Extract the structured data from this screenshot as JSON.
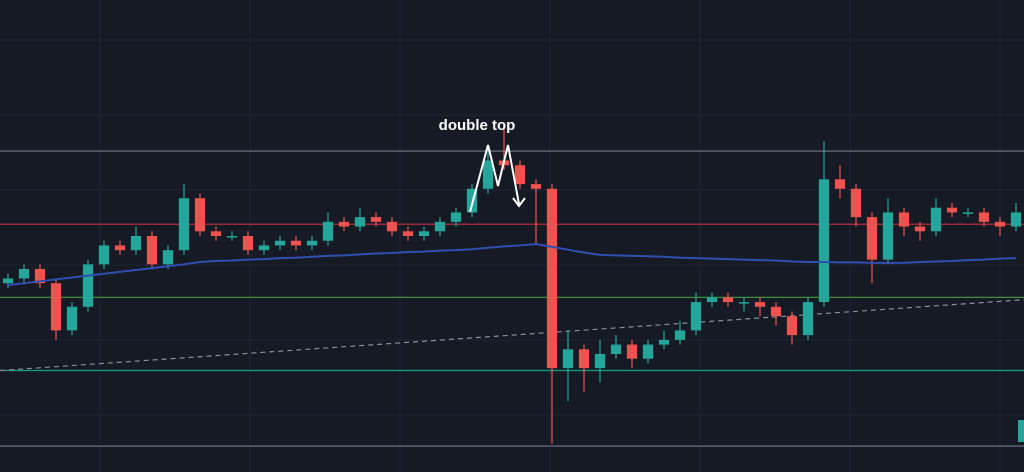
{
  "chart_data": {
    "type": "candlestick",
    "annotation": "double top",
    "ylim": [
      0,
      100
    ],
    "up_color": "#26a69a",
    "down_color": "#ef5350",
    "open": [
      40,
      41,
      43,
      40,
      30,
      35,
      44,
      48,
      47,
      50,
      44,
      47,
      58,
      51,
      50,
      50,
      47,
      48,
      49,
      48,
      49,
      53,
      52,
      54,
      53,
      51,
      50,
      51,
      53,
      55,
      60,
      66,
      65,
      61,
      60,
      22,
      26,
      22,
      25,
      27,
      24,
      27,
      28,
      30,
      36,
      37,
      36,
      36,
      35,
      33,
      29,
      36,
      62,
      60,
      54,
      45,
      55,
      52,
      51,
      56,
      55,
      55,
      53,
      52
    ],
    "high": [
      42,
      44,
      44,
      41,
      36,
      45,
      49,
      49,
      52,
      51,
      48,
      61,
      59,
      52,
      51,
      51,
      49,
      50,
      50,
      50,
      55,
      54,
      56,
      55,
      54,
      52,
      52,
      54,
      56,
      61,
      68,
      74,
      66,
      62,
      61,
      30,
      27,
      28,
      29,
      28,
      28,
      30,
      32,
      38,
      38,
      38,
      37,
      37,
      36,
      34,
      37,
      70,
      65,
      61,
      55,
      58,
      56,
      53,
      58,
      57,
      56,
      56,
      54,
      57
    ],
    "low": [
      39,
      40,
      39,
      28,
      29,
      34,
      43,
      46,
      46,
      43,
      43,
      46,
      50,
      49,
      49,
      46,
      46,
      47,
      47,
      47,
      48,
      51,
      51,
      52,
      50,
      49,
      49,
      50,
      52,
      54,
      59,
      64,
      60,
      48,
      6,
      15,
      17,
      19,
      24,
      22,
      23,
      26,
      27,
      29,
      35,
      35,
      34,
      33,
      31,
      27,
      28,
      35,
      58,
      52,
      40,
      44,
      50,
      49,
      50,
      54,
      54,
      52,
      50,
      51
    ],
    "close": [
      41,
      43,
      40,
      30,
      35,
      44,
      48,
      47,
      50,
      44,
      47,
      58,
      51,
      50,
      50,
      47,
      48,
      49,
      48,
      49,
      53,
      52,
      54,
      53,
      51,
      50,
      51,
      53,
      55,
      60,
      66,
      65,
      61,
      60,
      22,
      26,
      22,
      25,
      27,
      24,
      27,
      28,
      30,
      36,
      37,
      36,
      36,
      35,
      33,
      29,
      36,
      62,
      60,
      54,
      45,
      55,
      52,
      51,
      56,
      55,
      55,
      53,
      52,
      55
    ],
    "moving_average": {
      "color": "#2f4fb0",
      "values": [
        39.6,
        40,
        40.4,
        40.8,
        41.2,
        41.6,
        42,
        42.4,
        42.8,
        43.2,
        43.6,
        44,
        44.5,
        44.7,
        44.8,
        45,
        45.1,
        45.3,
        45.4,
        45.6,
        45.8,
        45.9,
        46.1,
        46.3,
        46.4,
        46.6,
        46.7,
        46.9,
        47,
        47.2,
        47.5,
        47.8,
        48,
        48.3,
        47.7,
        47.1,
        46.5,
        46,
        45.9,
        45.8,
        45.7,
        45.6,
        45.4,
        45.3,
        45.2,
        45.1,
        45,
        44.9,
        44.8,
        44.6,
        44.5,
        44.5,
        44.4,
        44.4,
        44.3,
        44.3,
        44.3,
        44.5,
        44.6,
        44.7,
        44.9,
        45,
        45.2,
        45.3
      ]
    },
    "levels": [
      {
        "value": 68,
        "color": "#787b86"
      },
      {
        "value": 52.5,
        "color": "#c2303c"
      },
      {
        "value": 37,
        "color": "#3f8f3f"
      },
      {
        "value": 21.5,
        "color": "#1e9c8a"
      },
      {
        "value": 5.5,
        "color": "#787b86"
      }
    ],
    "trendline": {
      "start": 21.5,
      "end": 36.5,
      "color": "#8a8e99"
    }
  }
}
